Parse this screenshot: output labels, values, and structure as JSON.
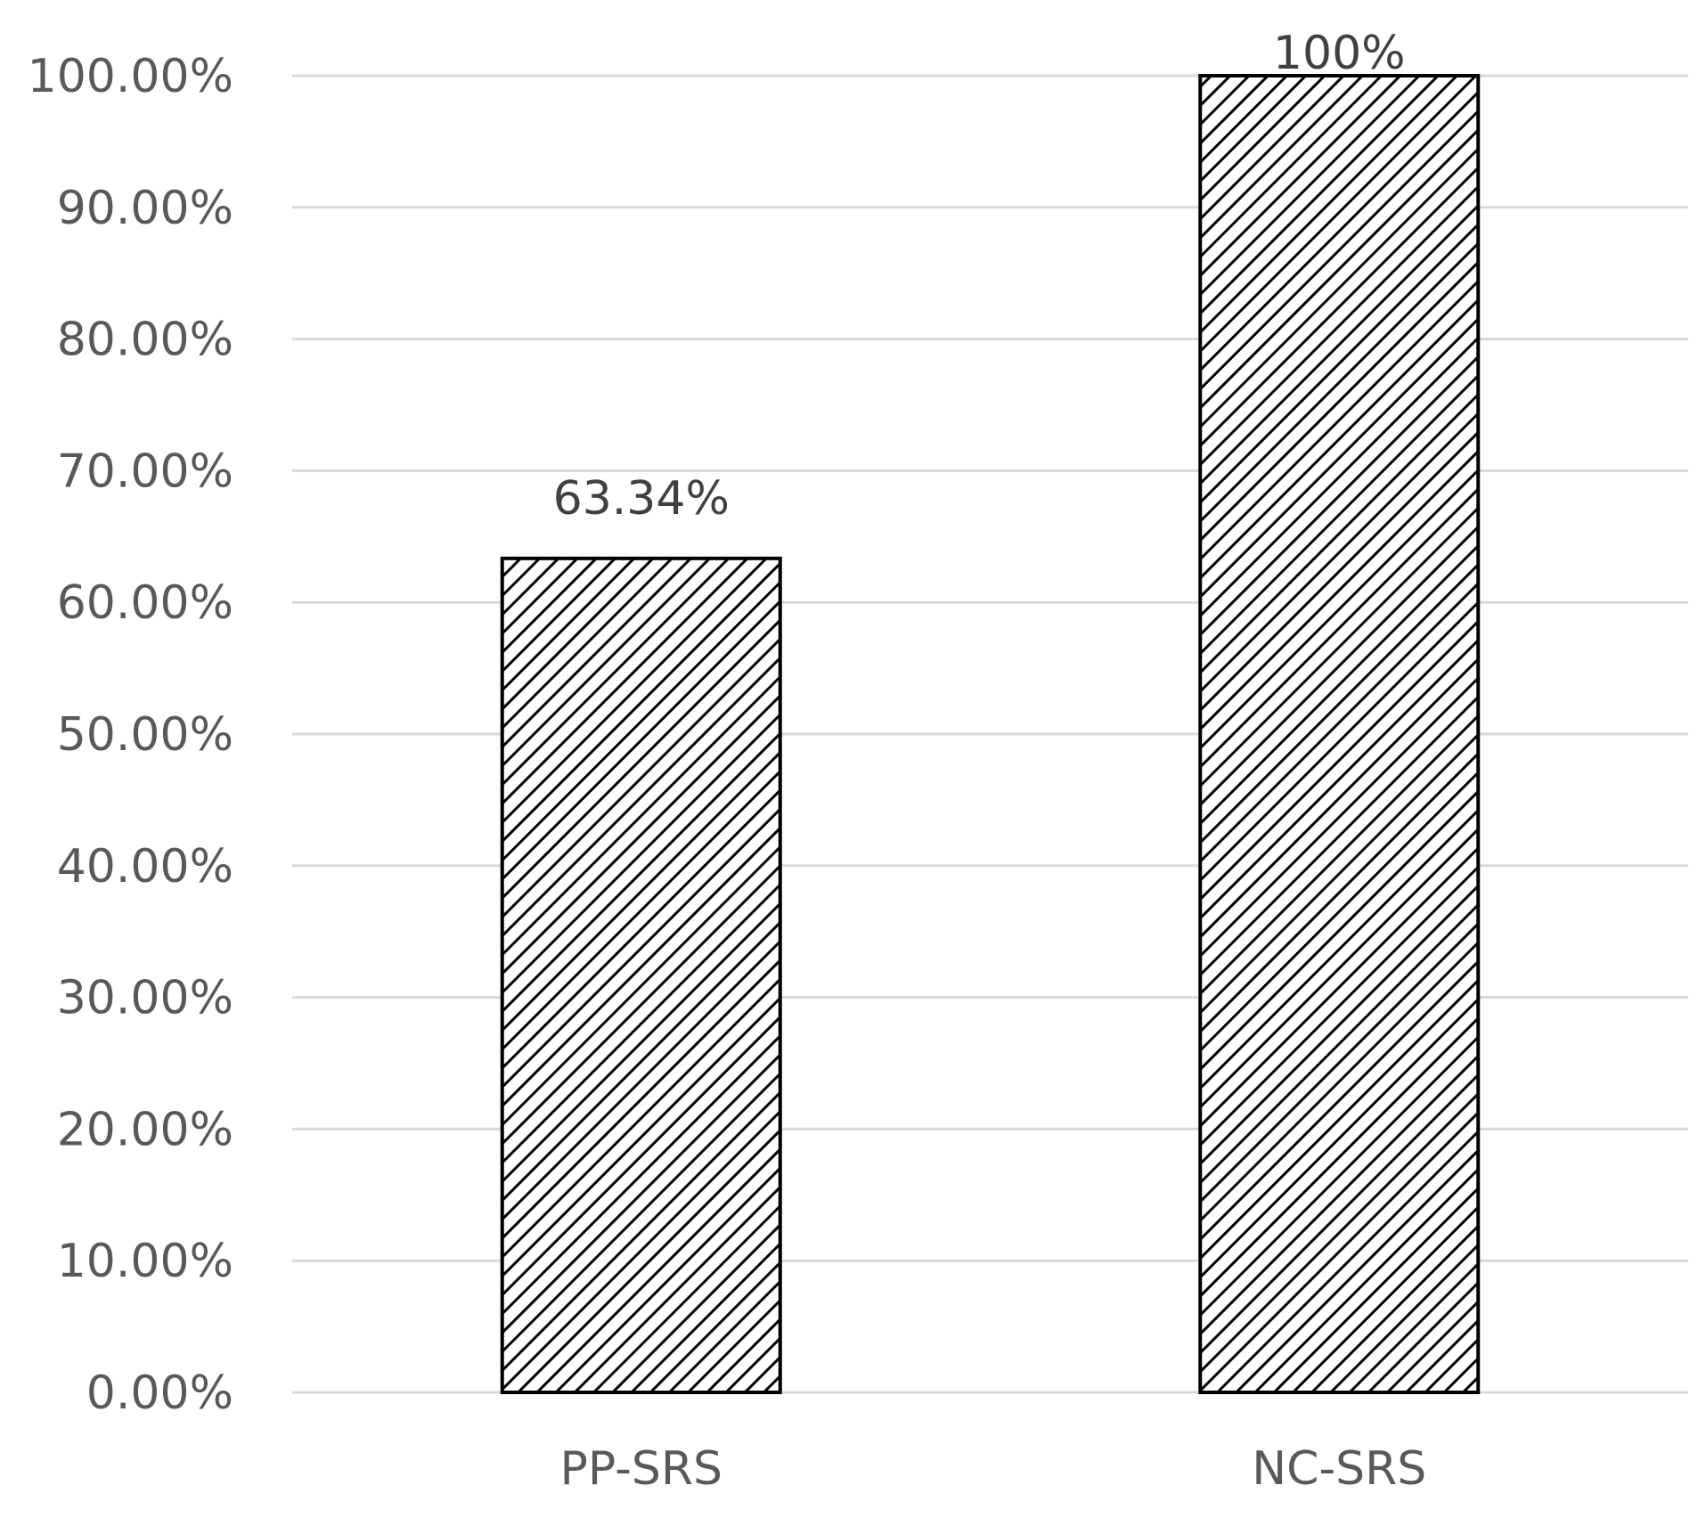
{
  "chart_data": {
    "type": "bar",
    "title": "",
    "xlabel": "",
    "ylabel": "",
    "categories": [
      "PP-SRS",
      "NC-SRS"
    ],
    "values": [
      63.34,
      100
    ],
    "data_labels": [
      "63.34%",
      "100%"
    ],
    "ylim": [
      0,
      100
    ],
    "yticks": [
      0,
      10,
      20,
      30,
      40,
      50,
      60,
      70,
      80,
      90,
      100
    ],
    "ytick_labels": [
      "0.00%",
      "10.00%",
      "20.00%",
      "30.00%",
      "40.00%",
      "50.00%",
      "60.00%",
      "70.00%",
      "80.00%",
      "90.00%",
      "100.00%"
    ],
    "grid": true,
    "legend": "none",
    "bar_fill": "diagonal-hatch",
    "colors": {
      "bar_stroke": "#000000",
      "hatch": "#000000",
      "gridline": "#d9d9d9",
      "tick_text": "#595959",
      "data_label_text": "#404040"
    }
  }
}
